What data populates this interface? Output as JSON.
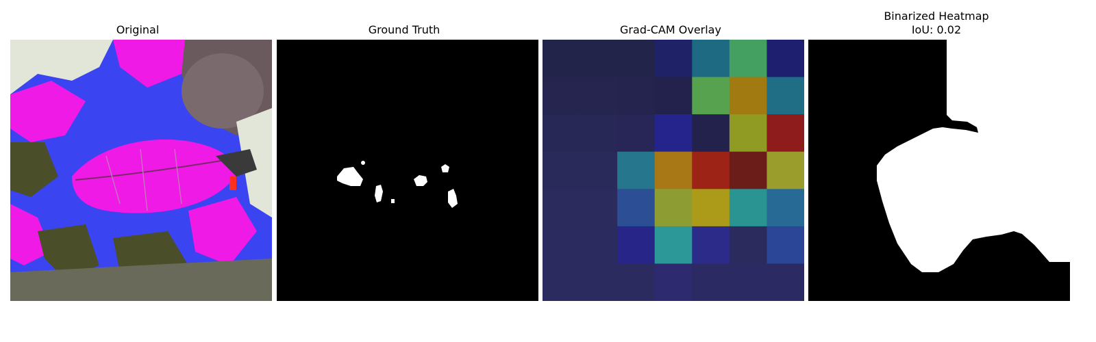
{
  "figure": {
    "panels": [
      {
        "id": "original",
        "title": "Original"
      },
      {
        "id": "ground-truth",
        "title": "Ground Truth"
      },
      {
        "id": "gradcam-overlay",
        "title": "Grad-CAM Overlay"
      },
      {
        "id": "binarized-heatmap",
        "title": "Binarized Heatmap",
        "subtitle": "IoU: 0.02"
      }
    ],
    "gradcam_grid": {
      "rows": 7,
      "cols": 7,
      "colors": [
        [
          "#22244a",
          "#22244a",
          "#22244a",
          "#1f2266",
          "#1e6a82",
          "#43a060",
          "#1e1f6e"
        ],
        [
          "#252550",
          "#252550",
          "#24244f",
          "#22224c",
          "#56a24e",
          "#a17b12",
          "#1f6e86"
        ],
        [
          "#282856",
          "#282856",
          "#272656",
          "#25248c",
          "#22224c",
          "#8f9b22",
          "#8e1c1c"
        ],
        [
          "#2a2a5a",
          "#2a2a5a",
          "#26768d",
          "#a87716",
          "#9c2316",
          "#6b1d1a",
          "#9a9c2c"
        ],
        [
          "#2b2b5d",
          "#2b2b5d",
          "#2b4e94",
          "#8e9c34",
          "#ab9b18",
          "#2a9493",
          "#286a96"
        ],
        [
          "#2b2b5f",
          "#2b2b5f",
          "#272688",
          "#2c9898",
          "#2c2b8a",
          "#2b2b5e",
          "#2b4696"
        ],
        [
          "#2c2b60",
          "#2c2b60",
          "#2c2b60",
          "#2d2a70",
          "#2c2a62",
          "#2c2a62",
          "#2c2a62"
        ]
      ]
    },
    "colors": {
      "magenta": "#f01ae6",
      "blue": "#3a44f0",
      "olive": "#4a4f2a",
      "pale": "#e2e6d8",
      "white": "#ffffff",
      "black": "#000000"
    }
  }
}
